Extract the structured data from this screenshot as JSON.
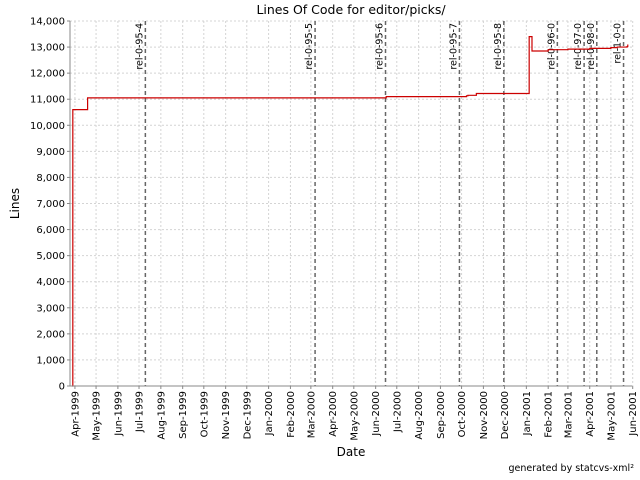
{
  "footer": "generated by statcvs-xml²",
  "chart_data": {
    "type": "line",
    "title": "Lines Of Code for editor/picks/",
    "xlabel": "Date",
    "ylabel": "Lines",
    "ylim": [
      0,
      14000
    ],
    "yticks": [
      0,
      1000,
      2000,
      3000,
      4000,
      5000,
      6000,
      7000,
      8000,
      9000,
      10000,
      11000,
      12000,
      13000,
      14000
    ],
    "ytick_labels": [
      "0",
      "1,000",
      "2,000",
      "3,000",
      "4,000",
      "5,000",
      "6,000",
      "7,000",
      "8,000",
      "9,000",
      "10,000",
      "11,000",
      "12,000",
      "13,000",
      "14,000"
    ],
    "xlim": [
      "1999-03-25",
      "2001-05-31"
    ],
    "xticks": [
      "1999-04-01",
      "1999-05-01",
      "1999-06-01",
      "1999-07-01",
      "1999-08-01",
      "1999-09-01",
      "1999-10-01",
      "1999-11-01",
      "1999-12-01",
      "2000-01-01",
      "2000-02-01",
      "2000-03-01",
      "2000-04-01",
      "2000-05-01",
      "2000-06-01",
      "2000-07-01",
      "2000-08-01",
      "2000-09-01",
      "2000-10-01",
      "2000-11-01",
      "2000-12-01",
      "2001-01-01",
      "2001-02-01",
      "2001-03-01",
      "2001-04-01",
      "2001-05-01",
      "2001-06-01"
    ],
    "xtick_labels": [
      "Apr-1999",
      "May-1999",
      "Jun-1999",
      "Jul-1999",
      "Aug-1999",
      "Sep-1999",
      "Oct-1999",
      "Nov-1999",
      "Dec-1999",
      "Jan-2000",
      "Feb-2000",
      "Mar-2000",
      "Apr-2000",
      "May-2000",
      "Jun-2000",
      "Jul-2000",
      "Aug-2000",
      "Sep-2000",
      "Oct-2000",
      "Nov-2000",
      "Dec-2000",
      "Jan-2001",
      "Feb-2001",
      "Mar-2001",
      "Apr-2001",
      "May-2001",
      "Jun-2001"
    ],
    "grid": true,
    "series": [
      {
        "color": "#cc0000",
        "x": [
          "1999-03-28",
          "1999-03-29",
          "1999-04-18",
          "1999-04-19",
          "2000-06-15",
          "2000-06-16",
          "2000-10-02",
          "2000-10-08",
          "2000-10-10",
          "2000-10-22",
          "2001-01-04",
          "2001-01-05",
          "2001-01-08",
          "2001-01-09",
          "2001-01-25",
          "2001-02-01",
          "2001-02-15",
          "2001-03-01",
          "2001-03-10",
          "2001-04-01",
          "2001-04-15",
          "2001-05-01",
          "2001-05-10",
          "2001-05-20",
          "2001-05-24",
          "2001-05-25"
        ],
        "y": [
          0,
          10600,
          10600,
          11050,
          11050,
          11100,
          11100,
          11130,
          11150,
          11220,
          11220,
          13400,
          13400,
          12850,
          12850,
          12900,
          12900,
          12920,
          12920,
          12950,
          12950,
          12980,
          13000,
          13000,
          13020,
          13100
        ]
      }
    ],
    "releases": [
      {
        "label": "rel-0-95-4",
        "date": "1999-07-10"
      },
      {
        "label": "rel-0-95-5",
        "date": "2000-03-07"
      },
      {
        "label": "rel-0-95-6",
        "date": "2000-06-15"
      },
      {
        "label": "rel-0-95-7",
        "date": "2000-09-28"
      },
      {
        "label": "rel-0-95-8",
        "date": "2000-11-30"
      },
      {
        "label": "rel-0-96-0",
        "date": "2001-02-14"
      },
      {
        "label": "rel-0-97-0",
        "date": "2001-03-24"
      },
      {
        "label": "rel-0-98-0",
        "date": "2001-04-11"
      },
      {
        "label": "rel-1-0-0",
        "date": "2001-05-19"
      }
    ]
  }
}
